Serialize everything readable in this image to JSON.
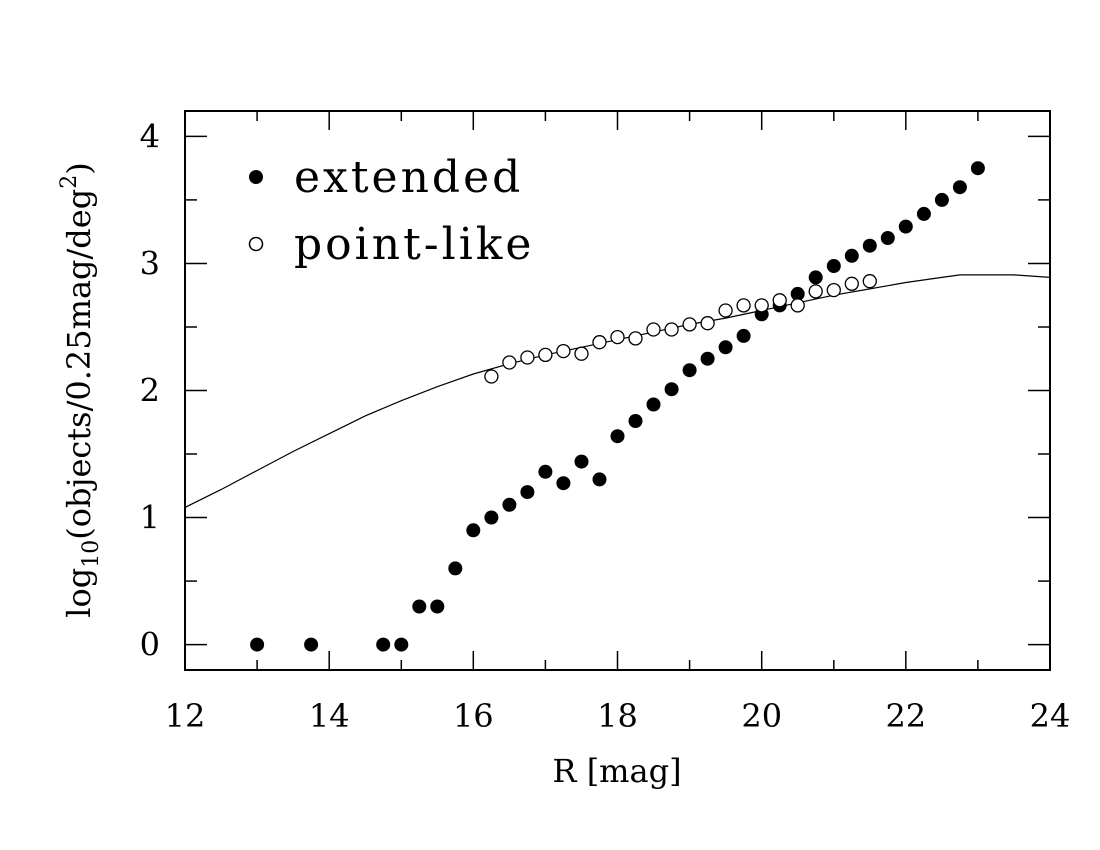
{
  "chart_data": {
    "type": "scatter",
    "xlabel": "R  [mag]",
    "ylabel_main": "log",
    "ylabel_sub": "10",
    "ylabel_rest": "(objects/0.25mag/deg",
    "ylabel_sup": "2",
    "ylabel_end": ")",
    "xlim": [
      12,
      24
    ],
    "ylim": [
      -0.2,
      4.2
    ],
    "x_major_ticks": [
      12,
      14,
      16,
      18,
      20,
      22,
      24
    ],
    "x_tick_labels": [
      "12",
      "14",
      "16",
      "18",
      "20",
      "22",
      "24"
    ],
    "x_minor_step": 1,
    "y_major_ticks": [
      0,
      1,
      2,
      3,
      4
    ],
    "y_tick_labels": [
      "0",
      "1",
      "2",
      "3",
      "4"
    ],
    "y_minor_step": 0.5,
    "grid": false,
    "legend_position": "top-left",
    "series": [
      {
        "name": "extended",
        "marker": "filled-circle",
        "points": [
          [
            13.0,
            0.0
          ],
          [
            13.75,
            0.0
          ],
          [
            14.75,
            0.0
          ],
          [
            15.0,
            0.0
          ],
          [
            15.25,
            0.3
          ],
          [
            15.5,
            0.3
          ],
          [
            15.75,
            0.6
          ],
          [
            16.0,
            0.9
          ],
          [
            16.25,
            1.0
          ],
          [
            16.5,
            1.1
          ],
          [
            16.75,
            1.2
          ],
          [
            17.0,
            1.36
          ],
          [
            17.25,
            1.27
          ],
          [
            17.5,
            1.44
          ],
          [
            17.75,
            1.3
          ],
          [
            18.0,
            1.64
          ],
          [
            18.25,
            1.76
          ],
          [
            18.5,
            1.89
          ],
          [
            18.75,
            2.01
          ],
          [
            19.0,
            2.16
          ],
          [
            19.25,
            2.25
          ],
          [
            19.5,
            2.34
          ],
          [
            19.75,
            2.43
          ],
          [
            20.0,
            2.6
          ],
          [
            20.25,
            2.67
          ],
          [
            20.5,
            2.76
          ],
          [
            20.75,
            2.89
          ],
          [
            21.0,
            2.98
          ],
          [
            21.25,
            3.06
          ],
          [
            21.5,
            3.14
          ],
          [
            21.75,
            3.2
          ],
          [
            22.0,
            3.29
          ],
          [
            22.25,
            3.39
          ],
          [
            22.5,
            3.5
          ],
          [
            22.75,
            3.6
          ],
          [
            23.0,
            3.75
          ]
        ]
      },
      {
        "name": "point-like",
        "marker": "open-circle",
        "points": [
          [
            16.25,
            2.11
          ],
          [
            16.5,
            2.22
          ],
          [
            16.75,
            2.26
          ],
          [
            17.0,
            2.28
          ],
          [
            17.25,
            2.31
          ],
          [
            17.5,
            2.29
          ],
          [
            17.75,
            2.38
          ],
          [
            18.0,
            2.42
          ],
          [
            18.25,
            2.41
          ],
          [
            18.5,
            2.48
          ],
          [
            18.75,
            2.48
          ],
          [
            19.0,
            2.52
          ],
          [
            19.25,
            2.53
          ],
          [
            19.5,
            2.63
          ],
          [
            19.75,
            2.67
          ],
          [
            20.0,
            2.67
          ],
          [
            20.25,
            2.71
          ],
          [
            20.5,
            2.67
          ],
          [
            20.75,
            2.78
          ],
          [
            21.0,
            2.79
          ],
          [
            21.25,
            2.84
          ],
          [
            21.5,
            2.86
          ]
        ]
      }
    ],
    "model_curve": {
      "points": [
        [
          12.0,
          1.08
        ],
        [
          12.5,
          1.22
        ],
        [
          13.0,
          1.37
        ],
        [
          13.5,
          1.52
        ],
        [
          14.0,
          1.66
        ],
        [
          14.5,
          1.8
        ],
        [
          15.0,
          1.92
        ],
        [
          15.5,
          2.03
        ],
        [
          16.0,
          2.13
        ],
        [
          16.5,
          2.21
        ],
        [
          17.0,
          2.28
        ],
        [
          17.5,
          2.34
        ],
        [
          18.0,
          2.4
        ],
        [
          18.5,
          2.46
        ],
        [
          19.0,
          2.52
        ],
        [
          19.5,
          2.57
        ],
        [
          20.0,
          2.63
        ],
        [
          20.5,
          2.69
        ],
        [
          21.0,
          2.75
        ],
        [
          21.5,
          2.8
        ],
        [
          22.0,
          2.85
        ],
        [
          22.5,
          2.89
        ],
        [
          22.75,
          2.91
        ],
        [
          23.0,
          2.91
        ],
        [
          23.5,
          2.91
        ],
        [
          24.0,
          2.89
        ]
      ]
    }
  }
}
